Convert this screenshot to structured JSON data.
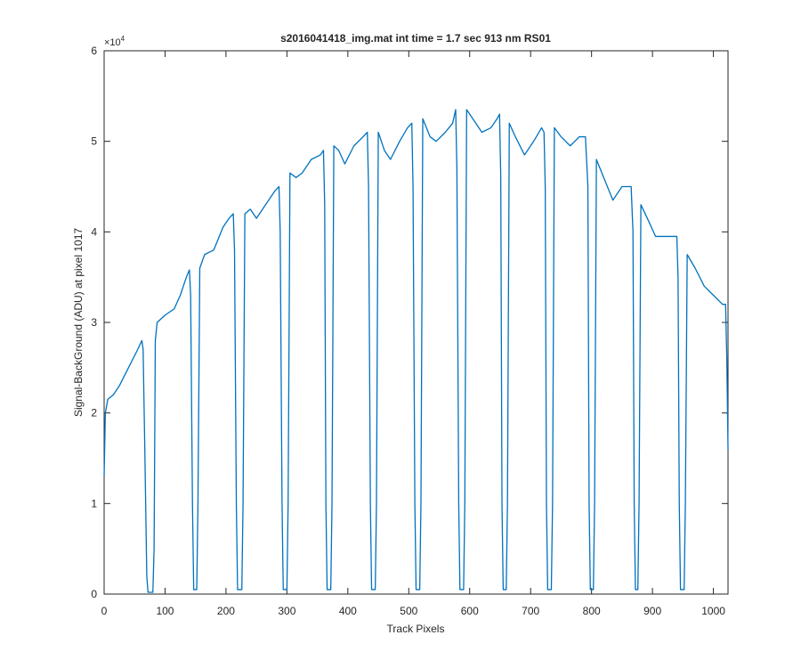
{
  "chart_data": {
    "type": "line",
    "title": "s2016041418_img.mat int time = 1.7 sec  913 nm RS01",
    "x_label": "Track Pixels",
    "y_label": "Signal-BackGround (ADU) at pixel 1017",
    "y_multiplier_base": "×10",
    "y_multiplier_exp": "4",
    "xlim": [
      0,
      1024
    ],
    "ylim": [
      0,
      60000
    ],
    "xticks": [
      0,
      100,
      200,
      300,
      400,
      500,
      600,
      700,
      800,
      900,
      1000
    ],
    "yticks": [
      {
        "value": 0,
        "label": "0"
      },
      {
        "value": 10000,
        "label": "1"
      },
      {
        "value": 20000,
        "label": "2"
      },
      {
        "value": 30000,
        "label": "3"
      },
      {
        "value": 40000,
        "label": "4"
      },
      {
        "value": 50000,
        "label": "5"
      },
      {
        "value": 60000,
        "label": "6"
      }
    ],
    "grid": false,
    "x": [
      0,
      2,
      6,
      15,
      25,
      40,
      55,
      62,
      64,
      67,
      70,
      72,
      80,
      82,
      84,
      87,
      100,
      115,
      125,
      135,
      140,
      142,
      145,
      147,
      152,
      154,
      157,
      165,
      180,
      195,
      205,
      212,
      214,
      217,
      219,
      226,
      228,
      231,
      240,
      250,
      265,
      280,
      287,
      289,
      292,
      294,
      300,
      302,
      305,
      315,
      325,
      340,
      355,
      360,
      362,
      364,
      366,
      372,
      374,
      377,
      385,
      395,
      410,
      425,
      432,
      434,
      437,
      439,
      445,
      447,
      450,
      460,
      470,
      485,
      498,
      505,
      507,
      510,
      512,
      518,
      520,
      523,
      535,
      545,
      560,
      572,
      577,
      579,
      582,
      584,
      590,
      592,
      595,
      605,
      620,
      635,
      645,
      649,
      651,
      653,
      655,
      660,
      662,
      665,
      675,
      690,
      705,
      718,
      722,
      724,
      726,
      728,
      734,
      736,
      739,
      750,
      765,
      780,
      790,
      794,
      796,
      798,
      803,
      805,
      808,
      820,
      835,
      850,
      865,
      868,
      870,
      872,
      876,
      878,
      881,
      895,
      905,
      920,
      940,
      942,
      944,
      946,
      952,
      954,
      957,
      970,
      985,
      1000,
      1015,
      1020,
      1022,
      1024
    ],
    "series": [
      {
        "name": "signal",
        "color": "#0072bd",
        "values": [
          13000,
          20000,
          21500,
          22000,
          23000,
          25000,
          27000,
          28000,
          27000,
          15000,
          2000,
          200,
          200,
          5000,
          28000,
          30000,
          30800,
          31500,
          33000,
          35000,
          35800,
          33000,
          10000,
          500,
          500,
          10000,
          36000,
          37500,
          38000,
          40500,
          41500,
          42000,
          38000,
          10000,
          500,
          500,
          10000,
          42000,
          42500,
          41500,
          43000,
          44500,
          45000,
          40000,
          10000,
          500,
          500,
          10000,
          46500,
          46000,
          46500,
          48000,
          48500,
          49000,
          43000,
          10000,
          500,
          500,
          10000,
          49500,
          49000,
          47500,
          49500,
          50500,
          51000,
          45000,
          10000,
          500,
          500,
          10000,
          51000,
          49000,
          48000,
          50000,
          51500,
          52000,
          45000,
          10000,
          500,
          500,
          10000,
          52500,
          50500,
          50000,
          51000,
          52000,
          53500,
          47000,
          10000,
          500,
          500,
          10000,
          53500,
          52500,
          51000,
          51500,
          52500,
          53000,
          46000,
          10000,
          500,
          500,
          10000,
          52000,
          50500,
          48500,
          50000,
          51500,
          51000,
          45000,
          10000,
          500,
          500,
          10000,
          51500,
          50500,
          49500,
          50500,
          50500,
          45000,
          10000,
          500,
          500,
          10000,
          48000,
          46000,
          43500,
          45000,
          45000,
          40000,
          10000,
          500,
          500,
          10000,
          43000,
          41000,
          39500,
          39500,
          39500,
          35000,
          10000,
          500,
          500,
          10000,
          37500,
          36000,
          34000,
          33000,
          32000,
          32000,
          26000,
          16000
        ]
      }
    ]
  }
}
